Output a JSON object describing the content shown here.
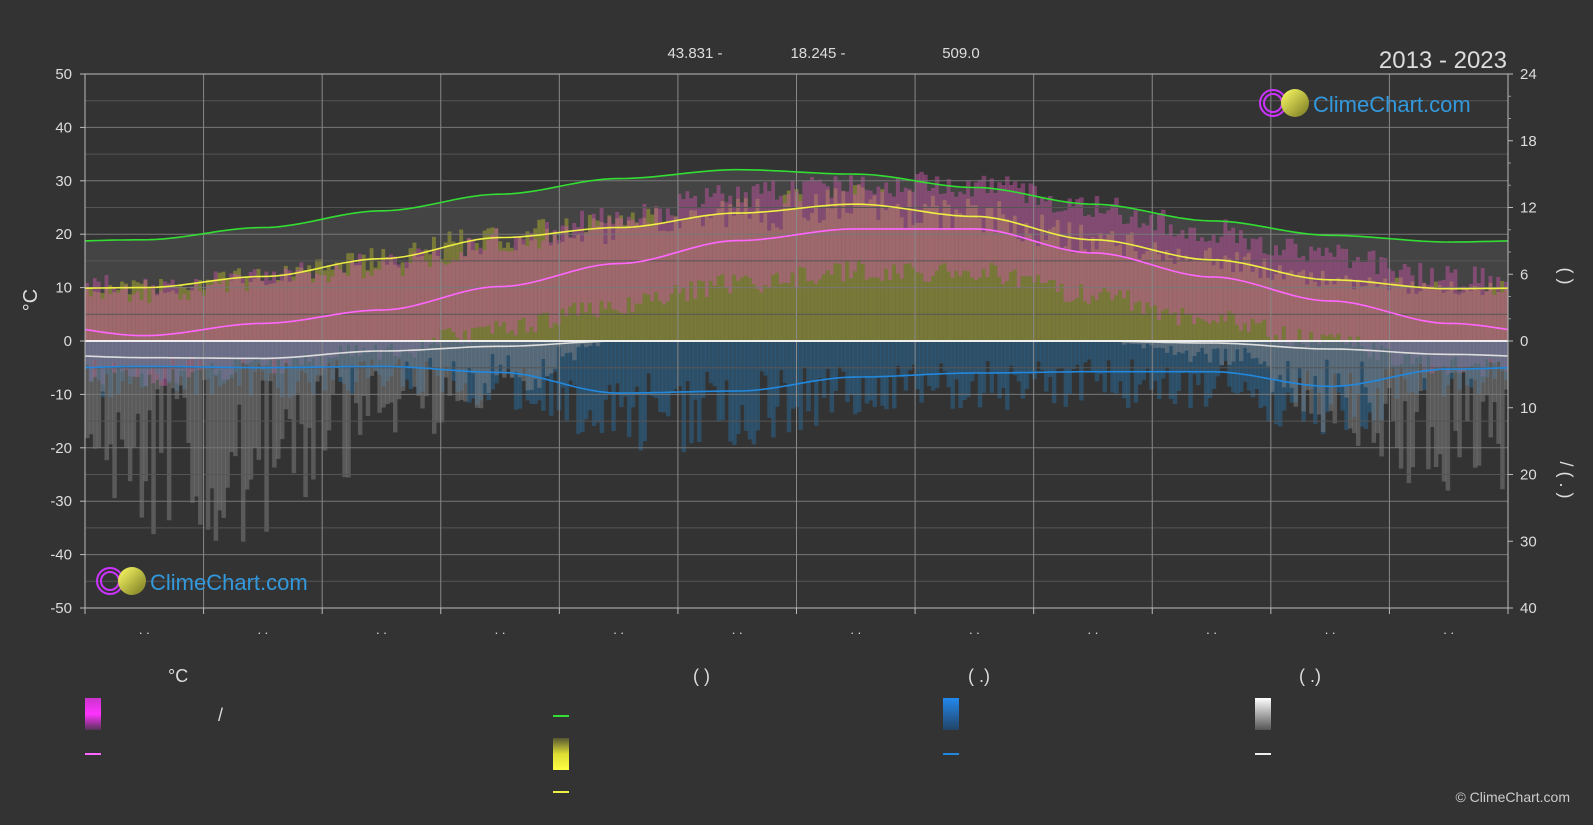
{
  "header": {
    "coords": [
      "43.831 -",
      "18.245 -",
      "509.0"
    ],
    "period": "2013 - 2023"
  },
  "brand": {
    "name": "ClimeChart.com",
    "copyright": "© ClimeChart.com"
  },
  "colors": {
    "background": "#333333",
    "daylight": "#33dd33",
    "sunshine": "#eeee44",
    "temperature": "#ff66ff",
    "precipitation": "#2288dd",
    "snow": "#dddddd",
    "brand": "#3399dd"
  },
  "chart_data": {
    "type": "line",
    "x": [
      1,
      2,
      3,
      4,
      5,
      6,
      7,
      8,
      9,
      10,
      11,
      12
    ],
    "x_tick_labels": [
      ". .",
      ". .",
      ". .",
      ". .",
      ". .",
      ". .",
      ". .",
      ". .",
      ". .",
      ". .",
      ". .",
      ". ."
    ],
    "left_axis": {
      "label": "°C",
      "ylim": [
        -50,
        50
      ],
      "ticks": [
        50,
        40,
        30,
        20,
        10,
        0,
        -10,
        -20,
        -30,
        -40,
        -50
      ]
    },
    "right_axis_top": {
      "label": "(  )",
      "ylim": [
        0,
        24
      ],
      "ticks": [
        24,
        18,
        12,
        6,
        0
      ]
    },
    "right_axis_bottom": {
      "label": "/ (  .  )",
      "ylim": [
        0,
        40
      ],
      "ticks": [
        0,
        10,
        20,
        30,
        40
      ]
    },
    "grid": true,
    "series": [
      {
        "axis": "hours",
        "values": [
          9.1,
          10.2,
          11.7,
          13.2,
          14.6,
          15.4,
          15.0,
          13.8,
          12.3,
          10.8,
          9.5,
          8.9
        ]
      },
      {
        "axis": "hours",
        "values": [
          4.8,
          5.8,
          7.4,
          9.3,
          10.2,
          11.5,
          12.3,
          11.2,
          9.1,
          7.3,
          5.5,
          4.7
        ]
      },
      {
        "axis": "temperature",
        "values": [
          1.0,
          3.3,
          5.8,
          10.2,
          14.5,
          18.8,
          21.0,
          21.0,
          16.5,
          12.0,
          7.5,
          3.3
        ]
      },
      {
        "axis": "precipitation",
        "values": [
          3.8,
          4.0,
          3.8,
          4.7,
          7.8,
          7.5,
          5.4,
          4.8,
          4.6,
          4.6,
          6.8,
          4.2
        ]
      },
      {
        "axis": "precipitation",
        "values": [
          2.5,
          2.6,
          1.5,
          0.8,
          0,
          0,
          0,
          0,
          0,
          0.3,
          1.2,
          2.0
        ]
      }
    ]
  },
  "legend": {
    "col1": {
      "header": "°C",
      "slash": "/"
    },
    "col2": {
      "header": "(        )"
    },
    "col3": {
      "header": "(   .)"
    },
    "col4": {
      "header": "(   .)"
    }
  }
}
